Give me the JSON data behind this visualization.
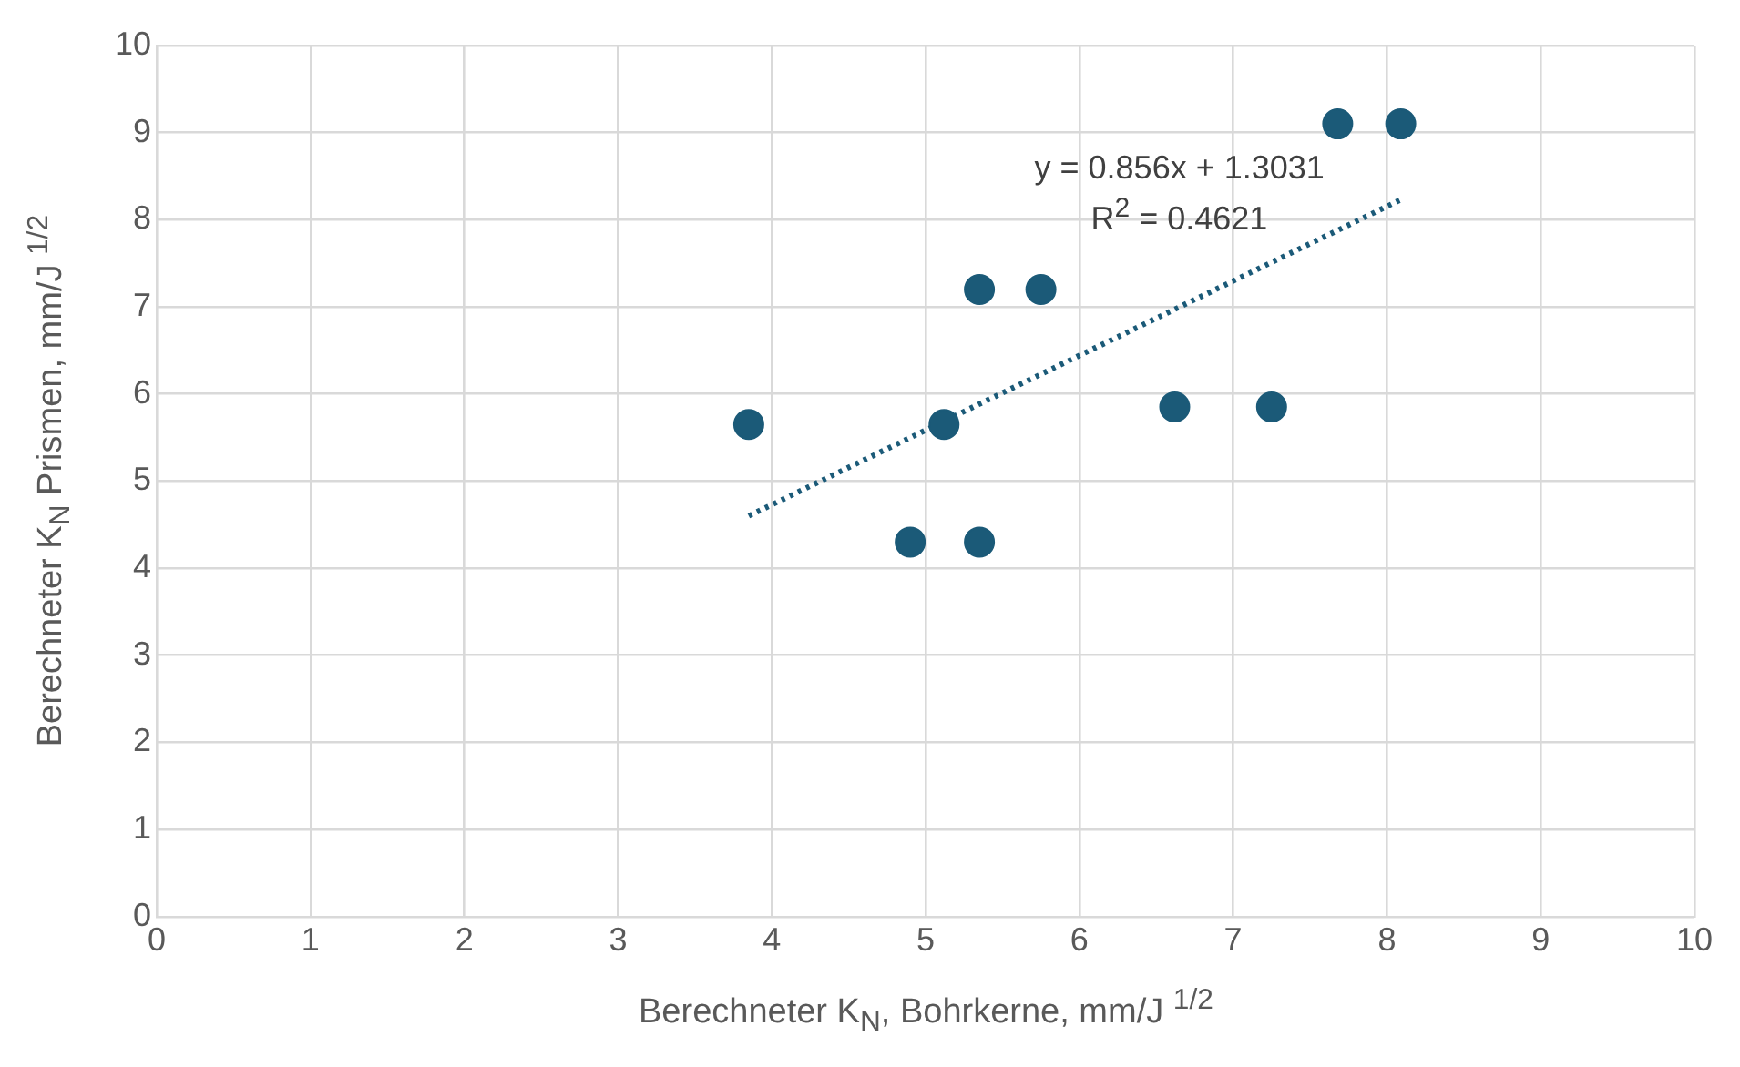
{
  "chart_data": {
    "type": "scatter",
    "xlabel": "Berechneter K$_{N}$, Bohrkerne, mm/J $^{1/2}$",
    "ylabel": "Berechneter K$_{N}$ Prismen, mm/J $^{1/2}$",
    "annotations": [
      "y = 0.856x + 1.3031",
      "R$^{2}$ = 0.4621"
    ],
    "series": [
      {
        "type": "scatter",
        "color": "#1b5a78",
        "marker": "circle",
        "x": [
          3.85,
          4.9,
          5.35,
          5.35,
          5.12,
          5.75,
          6.62,
          7.25,
          7.68,
          8.09
        ],
        "values": [
          5.65,
          4.3,
          4.3,
          7.2,
          5.65,
          7.2,
          5.85,
          5.85,
          9.1,
          9.1
        ]
      },
      {
        "type": "line",
        "color": "#1b5a78",
        "marker": "none",
        "line_style": "dotted",
        "x": [
          3.85,
          8.09
        ],
        "values": [
          4.6,
          8.23
        ]
      }
    ],
    "xlim": [
      0,
      10
    ],
    "xticks": [
      0,
      1,
      2,
      3,
      4,
      5,
      6,
      7,
      8,
      9,
      10
    ],
    "ylim": [
      0,
      10
    ],
    "yticks": [
      0,
      1,
      2,
      3,
      4,
      5,
      6,
      7,
      8,
      9,
      10
    ],
    "grid": true,
    "legend": false
  }
}
